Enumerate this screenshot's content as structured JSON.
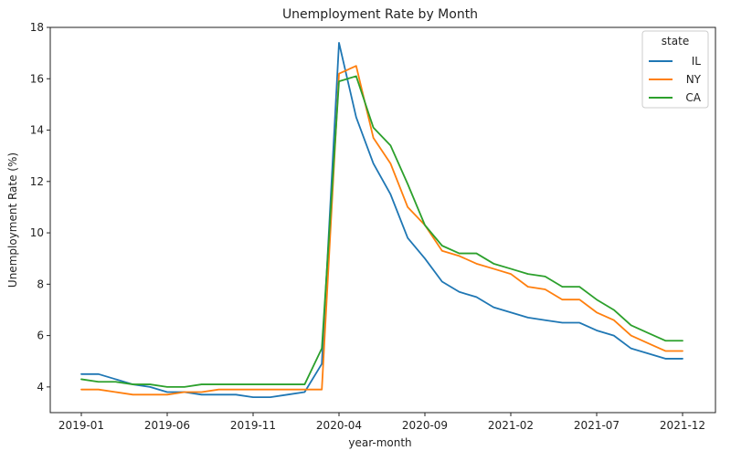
{
  "chart_data": {
    "type": "line",
    "title": "Unemployment Rate by Month",
    "xlabel": "year-month",
    "ylabel": "Unemployment Rate (%)",
    "ylim": [
      3.0,
      18.0
    ],
    "yticks": [
      4,
      6,
      8,
      10,
      12,
      14,
      16,
      18
    ],
    "xtick_labels": [
      "2019-01",
      "2019-06",
      "2019-11",
      "2020-04",
      "2020-09",
      "2021-02",
      "2021-07",
      "2021-12"
    ],
    "x": [
      "2019-01",
      "2019-02",
      "2019-03",
      "2019-04",
      "2019-05",
      "2019-06",
      "2019-07",
      "2019-08",
      "2019-09",
      "2019-10",
      "2019-11",
      "2019-12",
      "2020-01",
      "2020-02",
      "2020-03",
      "2020-04",
      "2020-05",
      "2020-06",
      "2020-07",
      "2020-08",
      "2020-09",
      "2020-10",
      "2020-11",
      "2020-12",
      "2021-01",
      "2021-02",
      "2021-03",
      "2021-04",
      "2021-05",
      "2021-06",
      "2021-07",
      "2021-08",
      "2021-09",
      "2021-10",
      "2021-11",
      "2021-12"
    ],
    "grid": false,
    "legend": {
      "title": "state",
      "placement": "top-right"
    },
    "series": [
      {
        "name": "IL",
        "color": "#1f77b4",
        "values": [
          4.5,
          4.5,
          4.3,
          4.1,
          4.0,
          3.8,
          3.8,
          3.7,
          3.7,
          3.7,
          3.6,
          3.6,
          3.7,
          3.8,
          4.9,
          17.4,
          14.5,
          12.7,
          11.5,
          9.8,
          9.0,
          8.1,
          7.7,
          7.5,
          7.1,
          6.9,
          6.7,
          6.6,
          6.5,
          6.5,
          6.2,
          6.0,
          5.5,
          5.3,
          5.1,
          5.1
        ]
      },
      {
        "name": "NY",
        "color": "#ff7f0e",
        "values": [
          3.9,
          3.9,
          3.8,
          3.7,
          3.7,
          3.7,
          3.8,
          3.8,
          3.9,
          3.9,
          3.9,
          3.9,
          3.9,
          3.9,
          3.9,
          16.2,
          16.5,
          13.7,
          12.7,
          11.0,
          10.3,
          9.3,
          9.1,
          8.8,
          8.6,
          8.4,
          7.9,
          7.8,
          7.4,
          7.4,
          6.9,
          6.6,
          6.0,
          5.7,
          5.4,
          5.4
        ]
      },
      {
        "name": "CA",
        "color": "#2ca02c",
        "values": [
          4.3,
          4.2,
          4.2,
          4.1,
          4.1,
          4.0,
          4.0,
          4.1,
          4.1,
          4.1,
          4.1,
          4.1,
          4.1,
          4.1,
          5.5,
          15.9,
          16.1,
          14.1,
          13.4,
          11.9,
          10.3,
          9.5,
          9.2,
          9.2,
          8.8,
          8.6,
          8.4,
          8.3,
          7.9,
          7.9,
          7.4,
          7.0,
          6.4,
          6.1,
          5.8,
          5.8
        ]
      }
    ]
  }
}
